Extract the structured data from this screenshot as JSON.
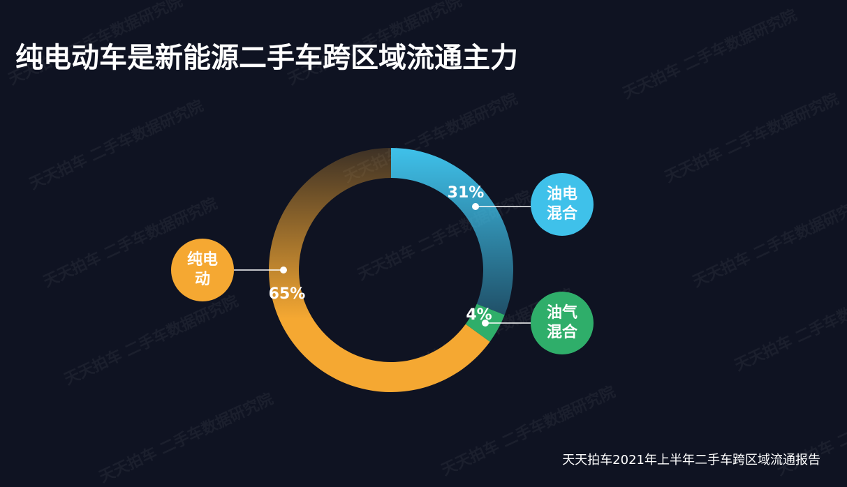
{
  "chart_data": {
    "type": "donut",
    "title": "纯电动车是新能源二手车跨区域流通主力",
    "categories": [
      "油电混合",
      "油气混合",
      "纯电动"
    ],
    "values": [
      31,
      4,
      65
    ],
    "value_labels": [
      "31%",
      "4%",
      "65%"
    ],
    "colors": [
      "#3fc1ea",
      "#2fae6a",
      "#f5a832"
    ],
    "source": "天天拍车2021年上半年二手车跨区域流通报告",
    "watermark": "天天拍车 二手车数据研究院"
  }
}
